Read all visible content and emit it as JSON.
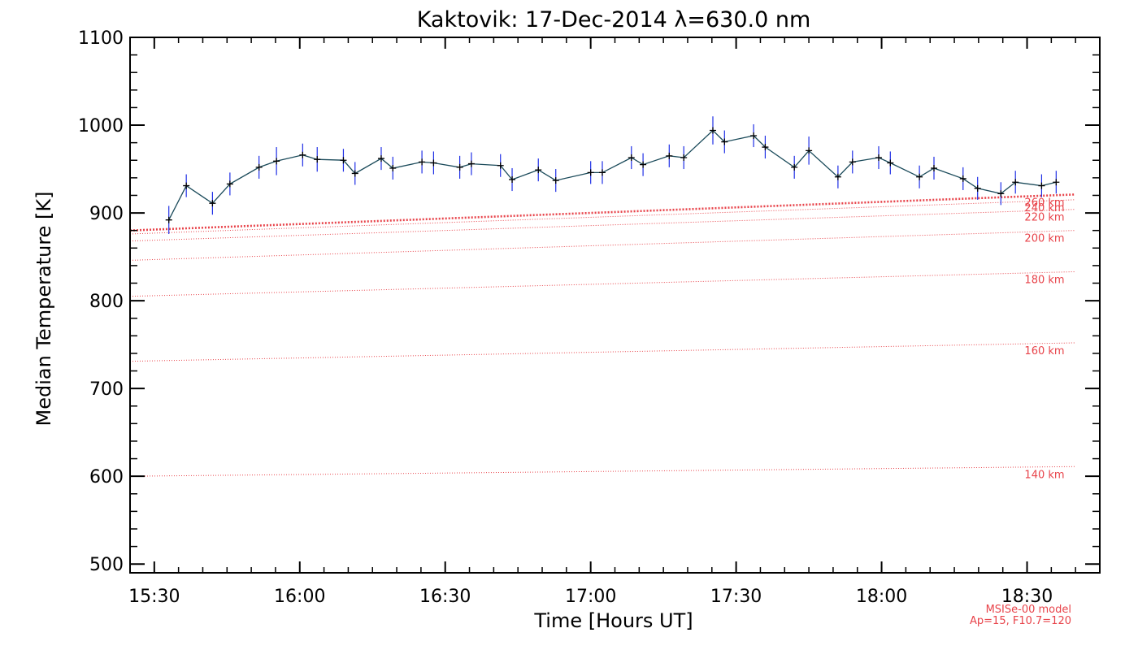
{
  "chart_data": {
    "type": "line",
    "title": "Kaktovik: 17-Dec-2014 λ=630.0 nm",
    "xlabel": "Time [Hours UT]",
    "ylabel": "Median Temperature [K]",
    "xlim": [
      15.4167,
      18.75
    ],
    "ylim": [
      490,
      1100
    ],
    "x_ticks": [
      15.5,
      16.0,
      16.5,
      17.0,
      17.5,
      18.0,
      18.5
    ],
    "x_tick_labels": [
      "15:30",
      "16:00",
      "16:30",
      "17:00",
      "17:30",
      "18:00",
      "18:30"
    ],
    "y_ticks": [
      500,
      600,
      700,
      800,
      900,
      1000,
      1100
    ],
    "y_tick_labels": [
      "500",
      "600",
      "700",
      "800",
      "900",
      "1000",
      "1100"
    ],
    "grid": false,
    "series": [
      {
        "color": "#1a4a5a",
        "error_color": "#1f2fe6",
        "x": [
          15.55,
          15.61,
          15.7,
          15.76,
          15.86,
          15.92,
          16.01,
          16.06,
          16.15,
          16.19,
          16.28,
          16.32,
          16.42,
          16.46,
          16.55,
          16.59,
          16.69,
          16.73,
          16.82,
          16.88,
          17.0,
          17.04,
          17.14,
          17.18,
          17.27,
          17.32,
          17.42,
          17.46,
          17.56,
          17.6,
          17.7,
          17.75,
          17.85,
          17.9,
          17.99,
          18.03,
          18.13,
          18.18,
          18.28,
          18.33,
          18.41,
          18.46,
          18.55,
          18.6
        ],
        "y": [
          892,
          931,
          911,
          933,
          952,
          959,
          966,
          961,
          960,
          945,
          962,
          951,
          958,
          957,
          952,
          956,
          954,
          938,
          949,
          937,
          946,
          946,
          963,
          955,
          965,
          963,
          994,
          981,
          988,
          975,
          952,
          971,
          941,
          958,
          963,
          957,
          941,
          951,
          939,
          928,
          922,
          935,
          931,
          935
        ],
        "err": [
          16,
          13,
          13,
          13,
          13,
          16,
          13,
          14,
          13,
          13,
          13,
          13,
          13,
          13,
          13,
          13,
          13,
          13,
          13,
          13,
          13,
          13,
          13,
          13,
          13,
          13,
          16,
          13,
          13,
          13,
          13,
          16,
          13,
          13,
          13,
          13,
          13,
          13,
          13,
          13,
          13,
          13,
          13,
          13
        ]
      }
    ],
    "reference_lines": [
      {
        "label": "140 km",
        "y_start": 600,
        "y_end": 611
      },
      {
        "label": "160 km",
        "y_start": 731,
        "y_end": 752
      },
      {
        "label": "180 km",
        "y_start": 805,
        "y_end": 833
      },
      {
        "label": "200 km",
        "y_start": 846,
        "y_end": 880
      },
      {
        "label": "220 km",
        "y_start": 868,
        "y_end": 904
      },
      {
        "label": "240 km",
        "y_start": 876,
        "y_end": 915
      },
      {
        "label": "260 km",
        "y_start": 880,
        "y_end": 921
      }
    ],
    "reference_color": "#e8434a",
    "annotations": [
      "MSISe-00 model",
      "Ap=15, F10.7=120"
    ]
  }
}
